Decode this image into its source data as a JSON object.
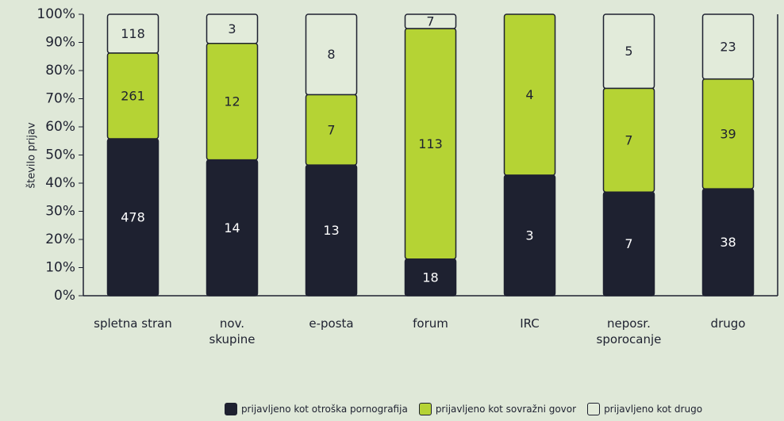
{
  "chart_data": {
    "type": "stacked_percent_bar",
    "y_label": "število prijav",
    "categories": [
      "spletna stran",
      "nov. skupine",
      "e-posta",
      "forum",
      "IRC",
      "neposr. sporocanje",
      "drugo"
    ],
    "series": [
      {
        "name": "prijavljeno kot otroška pornografija",
        "color": "#1e2130",
        "values": [
          478,
          14,
          13,
          18,
          3,
          7,
          38
        ]
      },
      {
        "name": "prijavljeno kot sovražni govor",
        "color": "#b5d334",
        "values": [
          261,
          12,
          7,
          113,
          4,
          7,
          39
        ]
      },
      {
        "name": "prijavljeno kot drugo",
        "color": "#e2ebda",
        "values": [
          118,
          3,
          8,
          7,
          null,
          5,
          23
        ]
      }
    ],
    "ylim": [
      0,
      100
    ],
    "yticks": [
      {
        "value": 0,
        "label": "0%"
      },
      {
        "value": 10,
        "label": "10%"
      },
      {
        "value": 20,
        "label": "20%"
      },
      {
        "value": 30,
        "label": "30%"
      },
      {
        "value": 40,
        "label": "40%"
      },
      {
        "value": 50,
        "label": "50%"
      },
      {
        "value": 60,
        "label": "60%"
      },
      {
        "value": 70,
        "label": "70%"
      },
      {
        "value": 80,
        "label": "80%"
      },
      {
        "value": 90,
        "label": "90%"
      },
      {
        "value": 100,
        "label": "100%"
      }
    ]
  }
}
